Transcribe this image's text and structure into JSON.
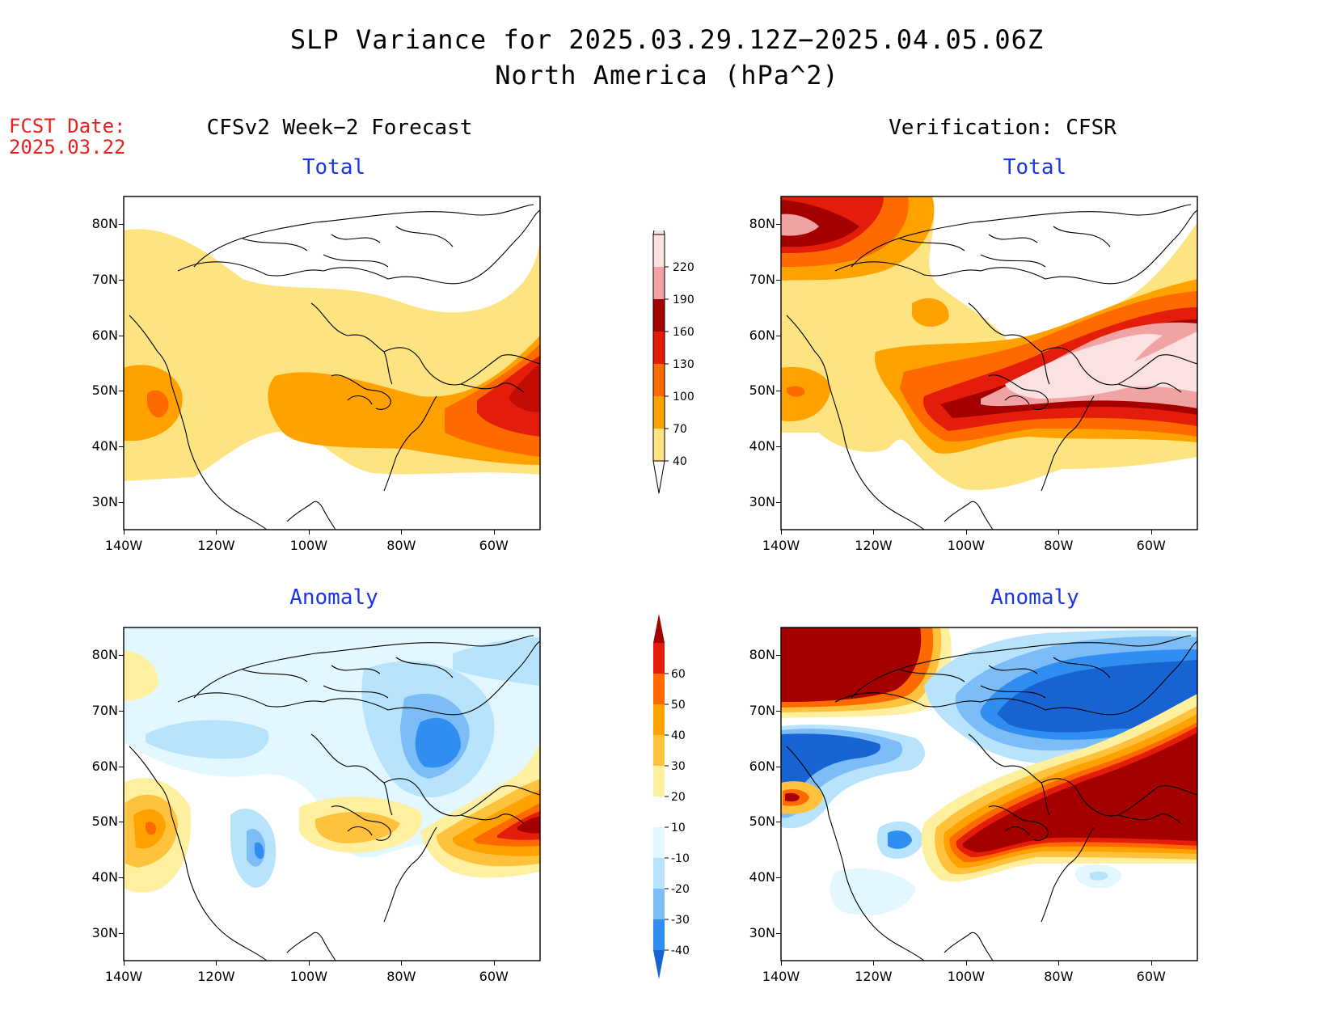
{
  "title": {
    "line1": "SLP Variance for 2025.03.29.12Z−2025.04.05.06Z",
    "line2": "North America (hPa^2)"
  },
  "fcst": {
    "label": "FCST Date:",
    "date": "2025.03.22"
  },
  "columns": {
    "left": "CFSv2 Week−2 Forecast",
    "right": "Verification: CFSR"
  },
  "panels": {
    "total_label": "Total",
    "anomaly_label": "Anomaly"
  },
  "axes": {
    "lat_ticks": [
      "80N",
      "70N",
      "60N",
      "50N",
      "40N",
      "30N"
    ],
    "lon_ticks": [
      "140W",
      "120W",
      "100W",
      "80W",
      "60W"
    ],
    "lat_values": [
      80,
      70,
      60,
      50,
      40,
      30
    ],
    "lon_values": [
      -140,
      -120,
      -100,
      -80,
      -60
    ],
    "lat_range": [
      25,
      85
    ],
    "lon_range": [
      -140,
      -50
    ]
  },
  "colorbars": {
    "total": {
      "levels": [
        "40",
        "70",
        "100",
        "130",
        "160",
        "190",
        "220"
      ],
      "colors": [
        "#fee481",
        "#ffa200",
        "#ff6a00",
        "#e41c0a",
        "#a50000",
        "#f1a2a2",
        "#fbe1e1"
      ]
    },
    "anomaly": {
      "levels": [
        "-40",
        "-30",
        "-20",
        "-10",
        "10",
        "20",
        "30",
        "40",
        "50",
        "60"
      ],
      "colors": [
        "#1763d2",
        "#2f8ef0",
        "#7cbcf7",
        "#b7e4fc",
        "#e2f7ff",
        "#ffffff",
        "#fff0a0",
        "#ffc23c",
        "#ffa200",
        "#ff6a00",
        "#e41c0a",
        "#a50000"
      ]
    }
  }
}
